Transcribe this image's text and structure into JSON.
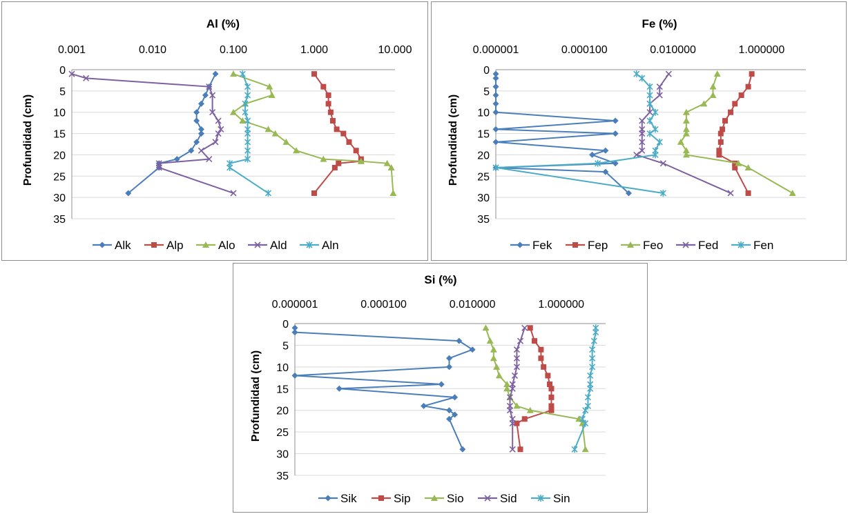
{
  "chart_data": [
    {
      "type": "line",
      "title": "Al (%)",
      "ylabel": "Profundidad (cm)",
      "xscale": "log",
      "xlim": [
        0.001,
        10
      ],
      "xticks": [
        0.001,
        0.01,
        0.1,
        1,
        10
      ],
      "xtick_labels": [
        "0.001",
        "0.010",
        "0.100",
        "1.000",
        "10.000"
      ],
      "ylim": [
        0,
        35
      ],
      "yticks": [
        0,
        5,
        10,
        15,
        20,
        25,
        30,
        35
      ],
      "ytick_labels": [
        "0",
        "5",
        "10",
        "15",
        "20",
        "25",
        "30",
        "35"
      ],
      "y_inverted": true,
      "legend_position": "bottom",
      "series": [
        {
          "name": "Alk",
          "color": "#4a7ebb",
          "marker": "diamond",
          "points": [
            [
              0.06,
              1
            ],
            [
              0.05,
              4
            ],
            [
              0.045,
              6
            ],
            [
              0.04,
              8
            ],
            [
              0.035,
              10
            ],
            [
              0.035,
              12
            ],
            [
              0.04,
              14
            ],
            [
              0.04,
              15
            ],
            [
              0.035,
              17
            ],
            [
              0.03,
              19
            ],
            [
              0.02,
              21
            ],
            [
              0.012,
              22
            ],
            [
              0.012,
              23
            ],
            [
              0.005,
              29
            ]
          ]
        },
        {
          "name": "Alp",
          "color": "#be4b48",
          "marker": "square",
          "points": [
            [
              1.0,
              1
            ],
            [
              1.3,
              4
            ],
            [
              1.5,
              6
            ],
            [
              1.5,
              8
            ],
            [
              1.6,
              10
            ],
            [
              1.7,
              12
            ],
            [
              1.9,
              14
            ],
            [
              2.3,
              15
            ],
            [
              2.7,
              17
            ],
            [
              3.3,
              19
            ],
            [
              3.8,
              21
            ],
            [
              3.8,
              21.5
            ],
            [
              2.0,
              22
            ],
            [
              1.8,
              23
            ],
            [
              1.0,
              29
            ]
          ]
        },
        {
          "name": "Alo",
          "color": "#98b954",
          "marker": "triangle",
          "points": [
            [
              0.1,
              1
            ],
            [
              0.28,
              4
            ],
            [
              0.3,
              6
            ],
            [
              0.14,
              8
            ],
            [
              0.1,
              10
            ],
            [
              0.13,
              12
            ],
            [
              0.27,
              14
            ],
            [
              0.33,
              15
            ],
            [
              0.45,
              17
            ],
            [
              0.6,
              19
            ],
            [
              1.3,
              21
            ],
            [
              3.8,
              21.5
            ],
            [
              8,
              22
            ],
            [
              9,
              23
            ],
            [
              9.5,
              29
            ]
          ]
        },
        {
          "name": "Ald",
          "color": "#7d60a0",
          "marker": "x",
          "points": [
            [
              0.001,
              1
            ],
            [
              0.0015,
              2
            ],
            [
              0.05,
              4
            ],
            [
              0.055,
              6
            ],
            [
              0.055,
              10
            ],
            [
              0.065,
              12
            ],
            [
              0.07,
              14
            ],
            [
              0.065,
              15
            ],
            [
              0.06,
              17
            ],
            [
              0.04,
              19
            ],
            [
              0.05,
              21
            ],
            [
              0.012,
              22
            ],
            [
              0.012,
              23
            ],
            [
              0.1,
              29
            ]
          ]
        },
        {
          "name": "Aln",
          "color": "#4bacc6",
          "marker": "star",
          "points": [
            [
              0.13,
              1
            ],
            [
              0.15,
              4
            ],
            [
              0.15,
              6
            ],
            [
              0.14,
              8
            ],
            [
              0.14,
              10
            ],
            [
              0.15,
              12
            ],
            [
              0.15,
              14
            ],
            [
              0.15,
              15
            ],
            [
              0.15,
              17
            ],
            [
              0.15,
              19
            ],
            [
              0.15,
              21
            ],
            [
              0.09,
              22
            ],
            [
              0.09,
              23
            ],
            [
              0.27,
              29
            ]
          ]
        }
      ]
    },
    {
      "type": "line",
      "title": "Fe (%)",
      "ylabel": "Profundidad (cm)",
      "xscale": "log",
      "xlim": [
        1e-06,
        10
      ],
      "xticks": [
        1e-06,
        0.0001,
        0.01,
        1
      ],
      "xtick_labels": [
        "0.000001",
        "0.000100",
        "0.010000",
        "1.000000"
      ],
      "ylim": [
        0,
        35
      ],
      "yticks": [
        0,
        5,
        10,
        15,
        20,
        25,
        30,
        35
      ],
      "ytick_labels": [
        "0",
        "5",
        "10",
        "15",
        "20",
        "25",
        "30",
        "35"
      ],
      "y_inverted": true,
      "legend_position": "bottom",
      "series": [
        {
          "name": "Fek",
          "color": "#4a7ebb",
          "marker": "diamond",
          "points": [
            [
              1e-06,
              1
            ],
            [
              1e-06,
              2
            ],
            [
              1e-06,
              4
            ],
            [
              1e-06,
              6
            ],
            [
              1e-06,
              8
            ],
            [
              1e-06,
              10
            ],
            [
              0.0005,
              12
            ],
            [
              1e-06,
              14
            ],
            [
              0.0005,
              15
            ],
            [
              1e-06,
              17
            ],
            [
              0.0003,
              19
            ],
            [
              0.00015,
              20
            ],
            [
              0.0005,
              22
            ],
            [
              1e-06,
              23
            ],
            [
              0.0003,
              24
            ],
            [
              0.001,
              29
            ]
          ]
        },
        {
          "name": "Fep",
          "color": "#be4b48",
          "marker": "square",
          "points": [
            [
              0.6,
              1
            ],
            [
              0.5,
              4
            ],
            [
              0.35,
              6
            ],
            [
              0.25,
              8
            ],
            [
              0.2,
              10
            ],
            [
              0.15,
              12
            ],
            [
              0.13,
              14
            ],
            [
              0.12,
              15
            ],
            [
              0.12,
              17
            ],
            [
              0.11,
              19
            ],
            [
              0.11,
              20
            ],
            [
              0.25,
              22
            ],
            [
              0.25,
              23
            ],
            [
              0.5,
              29
            ]
          ]
        },
        {
          "name": "Feo",
          "color": "#98b954",
          "marker": "triangle",
          "points": [
            [
              0.1,
              1
            ],
            [
              0.08,
              4
            ],
            [
              0.08,
              6
            ],
            [
              0.05,
              8
            ],
            [
              0.02,
              10
            ],
            [
              0.02,
              12
            ],
            [
              0.02,
              14
            ],
            [
              0.02,
              15
            ],
            [
              0.015,
              17
            ],
            [
              0.02,
              19
            ],
            [
              0.02,
              20
            ],
            [
              0.3,
              22
            ],
            [
              0.5,
              23
            ],
            [
              5,
              29
            ]
          ]
        },
        {
          "name": "Fed",
          "color": "#7d60a0",
          "marker": "x",
          "points": [
            [
              0.008,
              1
            ],
            [
              0.005,
              4
            ],
            [
              0.005,
              6
            ],
            [
              0.003,
              8
            ],
            [
              0.003,
              10
            ],
            [
              0.002,
              12
            ],
            [
              0.002,
              14
            ],
            [
              0.002,
              15
            ],
            [
              0.002,
              17
            ],
            [
              0.002,
              19
            ],
            [
              0.0015,
              20
            ],
            [
              0.006,
              22
            ],
            [
              0.2,
              29
            ]
          ]
        },
        {
          "name": "Fen",
          "color": "#4bacc6",
          "marker": "star",
          "points": [
            [
              0.0015,
              1
            ],
            [
              0.002,
              2
            ],
            [
              0.003,
              4
            ],
            [
              0.003,
              6
            ],
            [
              0.003,
              8
            ],
            [
              0.004,
              10
            ],
            [
              0.003,
              12
            ],
            [
              0.004,
              14
            ],
            [
              0.003,
              15
            ],
            [
              0.005,
              17
            ],
            [
              0.004,
              19
            ],
            [
              0.004,
              20
            ],
            [
              0.0002,
              22
            ],
            [
              1e-06,
              23
            ],
            [
              0.006,
              29
            ]
          ]
        }
      ]
    },
    {
      "type": "line",
      "title": "Si (%)",
      "ylabel": "Profundidad (cm)",
      "xscale": "log",
      "xlim": [
        1e-06,
        10
      ],
      "xticks": [
        1e-06,
        0.0001,
        0.01,
        1
      ],
      "xtick_labels": [
        "0.000001",
        "0.000100",
        "0.010000",
        "1.000000"
      ],
      "ylim": [
        0,
        35
      ],
      "yticks": [
        0,
        5,
        10,
        15,
        20,
        25,
        30,
        35
      ],
      "ytick_labels": [
        "0",
        "5",
        "10",
        "15",
        "20",
        "25",
        "30",
        "35"
      ],
      "y_inverted": true,
      "legend_position": "bottom",
      "series": [
        {
          "name": "Sik",
          "color": "#4a7ebb",
          "marker": "diamond",
          "points": [
            [
              1e-06,
              1
            ],
            [
              1e-06,
              2
            ],
            [
              0.005,
              4
            ],
            [
              0.01,
              6
            ],
            [
              0.003,
              8
            ],
            [
              0.003,
              10
            ],
            [
              1e-06,
              12
            ],
            [
              0.002,
              14
            ],
            [
              1e-05,
              15
            ],
            [
              0.004,
              17
            ],
            [
              0.0008,
              19
            ],
            [
              0.003,
              20
            ],
            [
              0.004,
              21
            ],
            [
              0.003,
              22
            ],
            [
              0.006,
              29
            ]
          ]
        },
        {
          "name": "Sip",
          "color": "#be4b48",
          "marker": "square",
          "points": [
            [
              0.2,
              1
            ],
            [
              0.25,
              4
            ],
            [
              0.35,
              6
            ],
            [
              0.35,
              8
            ],
            [
              0.4,
              10
            ],
            [
              0.5,
              12
            ],
            [
              0.55,
              14
            ],
            [
              0.6,
              15
            ],
            [
              0.6,
              17
            ],
            [
              0.6,
              19
            ],
            [
              0.6,
              20
            ],
            [
              0.15,
              22
            ],
            [
              0.1,
              23
            ],
            [
              0.12,
              29
            ]
          ]
        },
        {
          "name": "Sio",
          "color": "#98b954",
          "marker": "triangle",
          "points": [
            [
              0.02,
              1
            ],
            [
              0.025,
              4
            ],
            [
              0.03,
              6
            ],
            [
              0.03,
              8
            ],
            [
              0.035,
              10
            ],
            [
              0.04,
              12
            ],
            [
              0.06,
              14
            ],
            [
              0.06,
              15
            ],
            [
              0.07,
              17
            ],
            [
              0.1,
              19
            ],
            [
              0.2,
              20
            ],
            [
              2.5,
              22
            ],
            [
              3,
              23
            ],
            [
              3.5,
              29
            ]
          ]
        },
        {
          "name": "Sid",
          "color": "#7d60a0",
          "marker": "x",
          "points": [
            [
              0.15,
              1
            ],
            [
              0.12,
              4
            ],
            [
              0.1,
              6
            ],
            [
              0.1,
              8
            ],
            [
              0.1,
              10
            ],
            [
              0.09,
              12
            ],
            [
              0.08,
              14
            ],
            [
              0.08,
              15
            ],
            [
              0.07,
              17
            ],
            [
              0.07,
              19
            ],
            [
              0.07,
              20
            ],
            [
              0.08,
              22
            ],
            [
              0.08,
              23
            ],
            [
              0.08,
              29
            ]
          ]
        },
        {
          "name": "Sin",
          "color": "#4bacc6",
          "marker": "star",
          "points": [
            [
              6,
              1
            ],
            [
              6,
              2
            ],
            [
              5.5,
              4
            ],
            [
              5,
              6
            ],
            [
              5,
              8
            ],
            [
              5,
              10
            ],
            [
              4.5,
              12
            ],
            [
              4.5,
              14
            ],
            [
              4.5,
              15
            ],
            [
              4,
              17
            ],
            [
              4,
              19
            ],
            [
              3.5,
              20
            ],
            [
              3,
              22
            ],
            [
              3.5,
              23
            ],
            [
              2,
              29
            ]
          ]
        }
      ]
    }
  ]
}
